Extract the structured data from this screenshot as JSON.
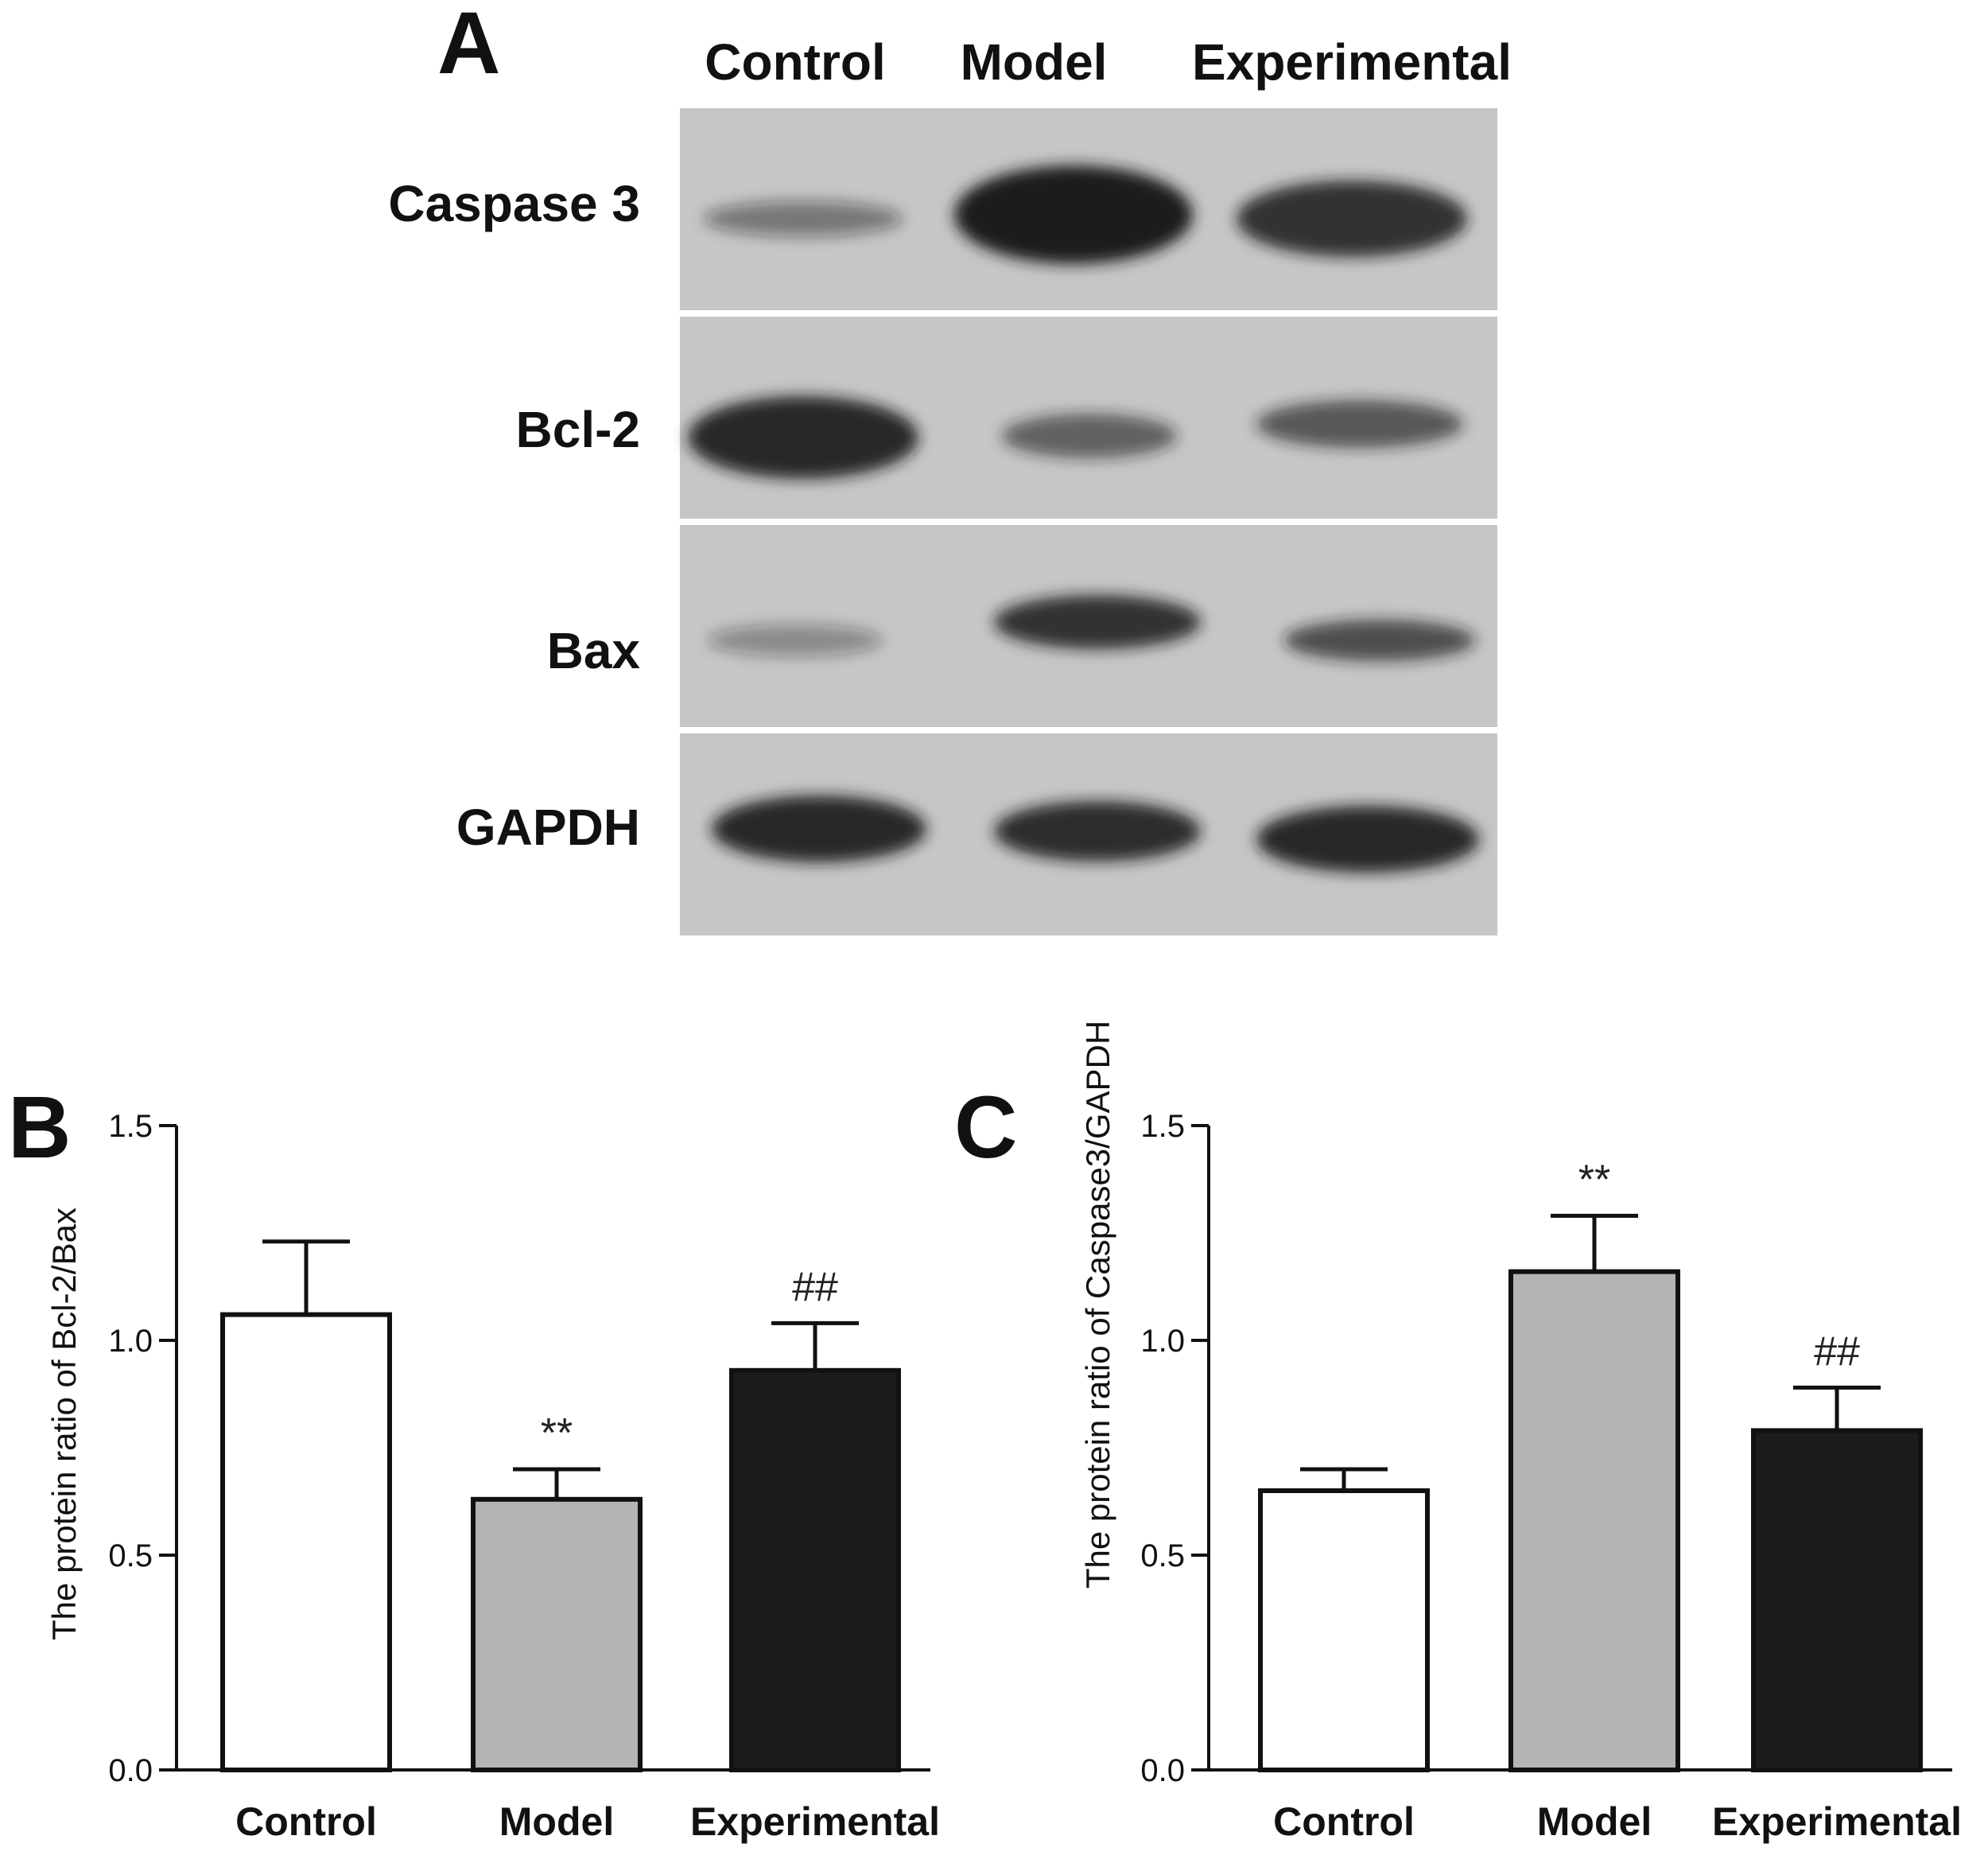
{
  "panel_a": {
    "letter": "A",
    "lanes": [
      "Control",
      "Model",
      "Experimental"
    ],
    "rows": [
      {
        "label": "Caspase 3",
        "intensity": [
          0.45,
          1.0,
          0.85
        ]
      },
      {
        "label": "Bcl-2",
        "intensity": [
          0.9,
          0.6,
          0.65
        ]
      },
      {
        "label": "Bax",
        "intensity": [
          0.35,
          0.85,
          0.7
        ]
      },
      {
        "label": "GAPDH",
        "intensity": [
          0.9,
          0.88,
          0.9
        ]
      }
    ],
    "colors": {
      "membrane": "#c6c6c6",
      "band": "#1a1a1a"
    }
  },
  "chart_data": [
    {
      "type": "bar",
      "panel": "B",
      "categories": [
        "Control",
        "Model",
        "Experimental"
      ],
      "values": [
        1.06,
        0.63,
        0.93
      ],
      "errors": [
        0.17,
        0.07,
        0.11
      ],
      "annotations": [
        "",
        "**",
        "##"
      ],
      "ylabel": "The protein ratio of Bcl-2/Bax",
      "ylim": [
        0.0,
        1.5
      ],
      "yticks": [
        "0.0",
        "0.5",
        "1.0",
        "1.5"
      ],
      "colors": [
        "#ffffff",
        "#b4b4b4",
        "#1c1c1c"
      ]
    },
    {
      "type": "bar",
      "panel": "C",
      "categories": [
        "Control",
        "Model",
        "Experimental"
      ],
      "values": [
        0.65,
        1.16,
        0.79
      ],
      "errors": [
        0.05,
        0.13,
        0.1
      ],
      "annotations": [
        "",
        "**",
        "##"
      ],
      "ylabel": "The protein ratio of Caspase3/GAPDH",
      "ylim": [
        0.0,
        1.5
      ],
      "yticks": [
        "0.0",
        "0.5",
        "1.0",
        "1.5"
      ],
      "colors": [
        "#ffffff",
        "#b4b4b4",
        "#1c1c1c"
      ]
    }
  ]
}
